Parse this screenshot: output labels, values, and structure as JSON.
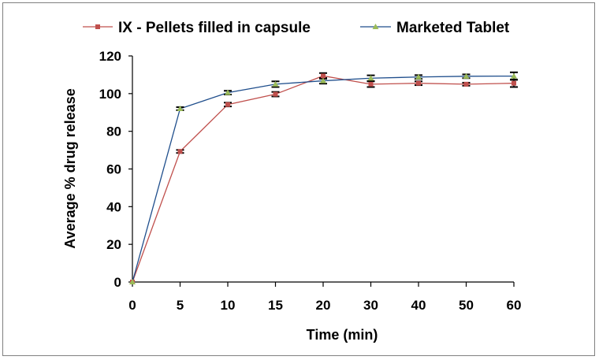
{
  "chart_data": {
    "type": "line",
    "title": "",
    "xlabel": "Time (min)",
    "ylabel": "Average % drug release",
    "categories": [
      "0",
      "5",
      "10",
      "15",
      "20",
      "30",
      "40",
      "50",
      "60"
    ],
    "ylim": [
      0,
      120
    ],
    "yticks": [
      "0",
      "20",
      "40",
      "60",
      "80",
      "100",
      "120"
    ],
    "grid": false,
    "legend_position": "top",
    "series": [
      {
        "name": "IX - Pellets filled in capsule",
        "color": "#c0504d",
        "marker": "square",
        "values": [
          0,
          69.3,
          94.2,
          99.7,
          109.4,
          105.0,
          105.5,
          105.0,
          105.5
        ],
        "errors": [
          0,
          0.8,
          1.0,
          1.2,
          1.5,
          1.5,
          1.0,
          0.8,
          2.0
        ]
      },
      {
        "name": "Marketed Tablet",
        "color": "#1f4e8c",
        "marker": "triangle",
        "marker_color": "#9bbb59",
        "values": [
          0,
          92.0,
          100.5,
          105.0,
          106.8,
          108.2,
          108.8,
          109.2,
          109.3
        ],
        "errors": [
          0,
          0.8,
          1.0,
          1.5,
          1.5,
          1.5,
          1.0,
          1.0,
          2.0
        ]
      }
    ]
  }
}
